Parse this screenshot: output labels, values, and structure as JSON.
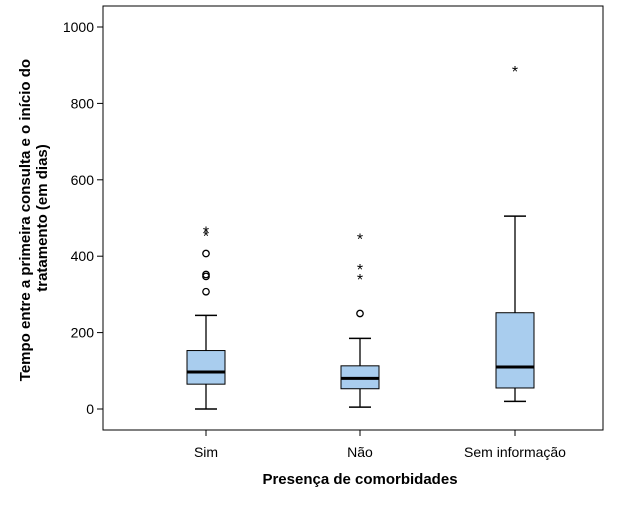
{
  "chart_data": {
    "type": "box",
    "xlabel": "Presença de comorbidades",
    "ylabel_lines": [
      "Tempo entre a primeira consulta e o início do",
      "tratamento (em dias)"
    ],
    "ylim": [
      -55,
      1055
    ],
    "yticks": [
      0,
      200,
      400,
      600,
      800,
      1000
    ],
    "grid": false,
    "box_color": "#a9cdee",
    "groups": [
      {
        "category": "Sim",
        "min": 0,
        "q1": 65,
        "median": 97,
        "q3": 153,
        "max": 245,
        "outliers": [
          307,
          347,
          352,
          407
        ],
        "extremes": [
          460,
          470
        ]
      },
      {
        "category": "Não",
        "min": 5,
        "q1": 53,
        "median": 80,
        "q3": 113,
        "max": 185,
        "outliers": [
          250
        ],
        "extremes": [
          345,
          372,
          452
        ]
      },
      {
        "category": "Sem informação",
        "min": 20,
        "q1": 55,
        "median": 110,
        "q3": 252,
        "max": 505,
        "outliers": [],
        "extremes": [
          890
        ]
      }
    ]
  }
}
